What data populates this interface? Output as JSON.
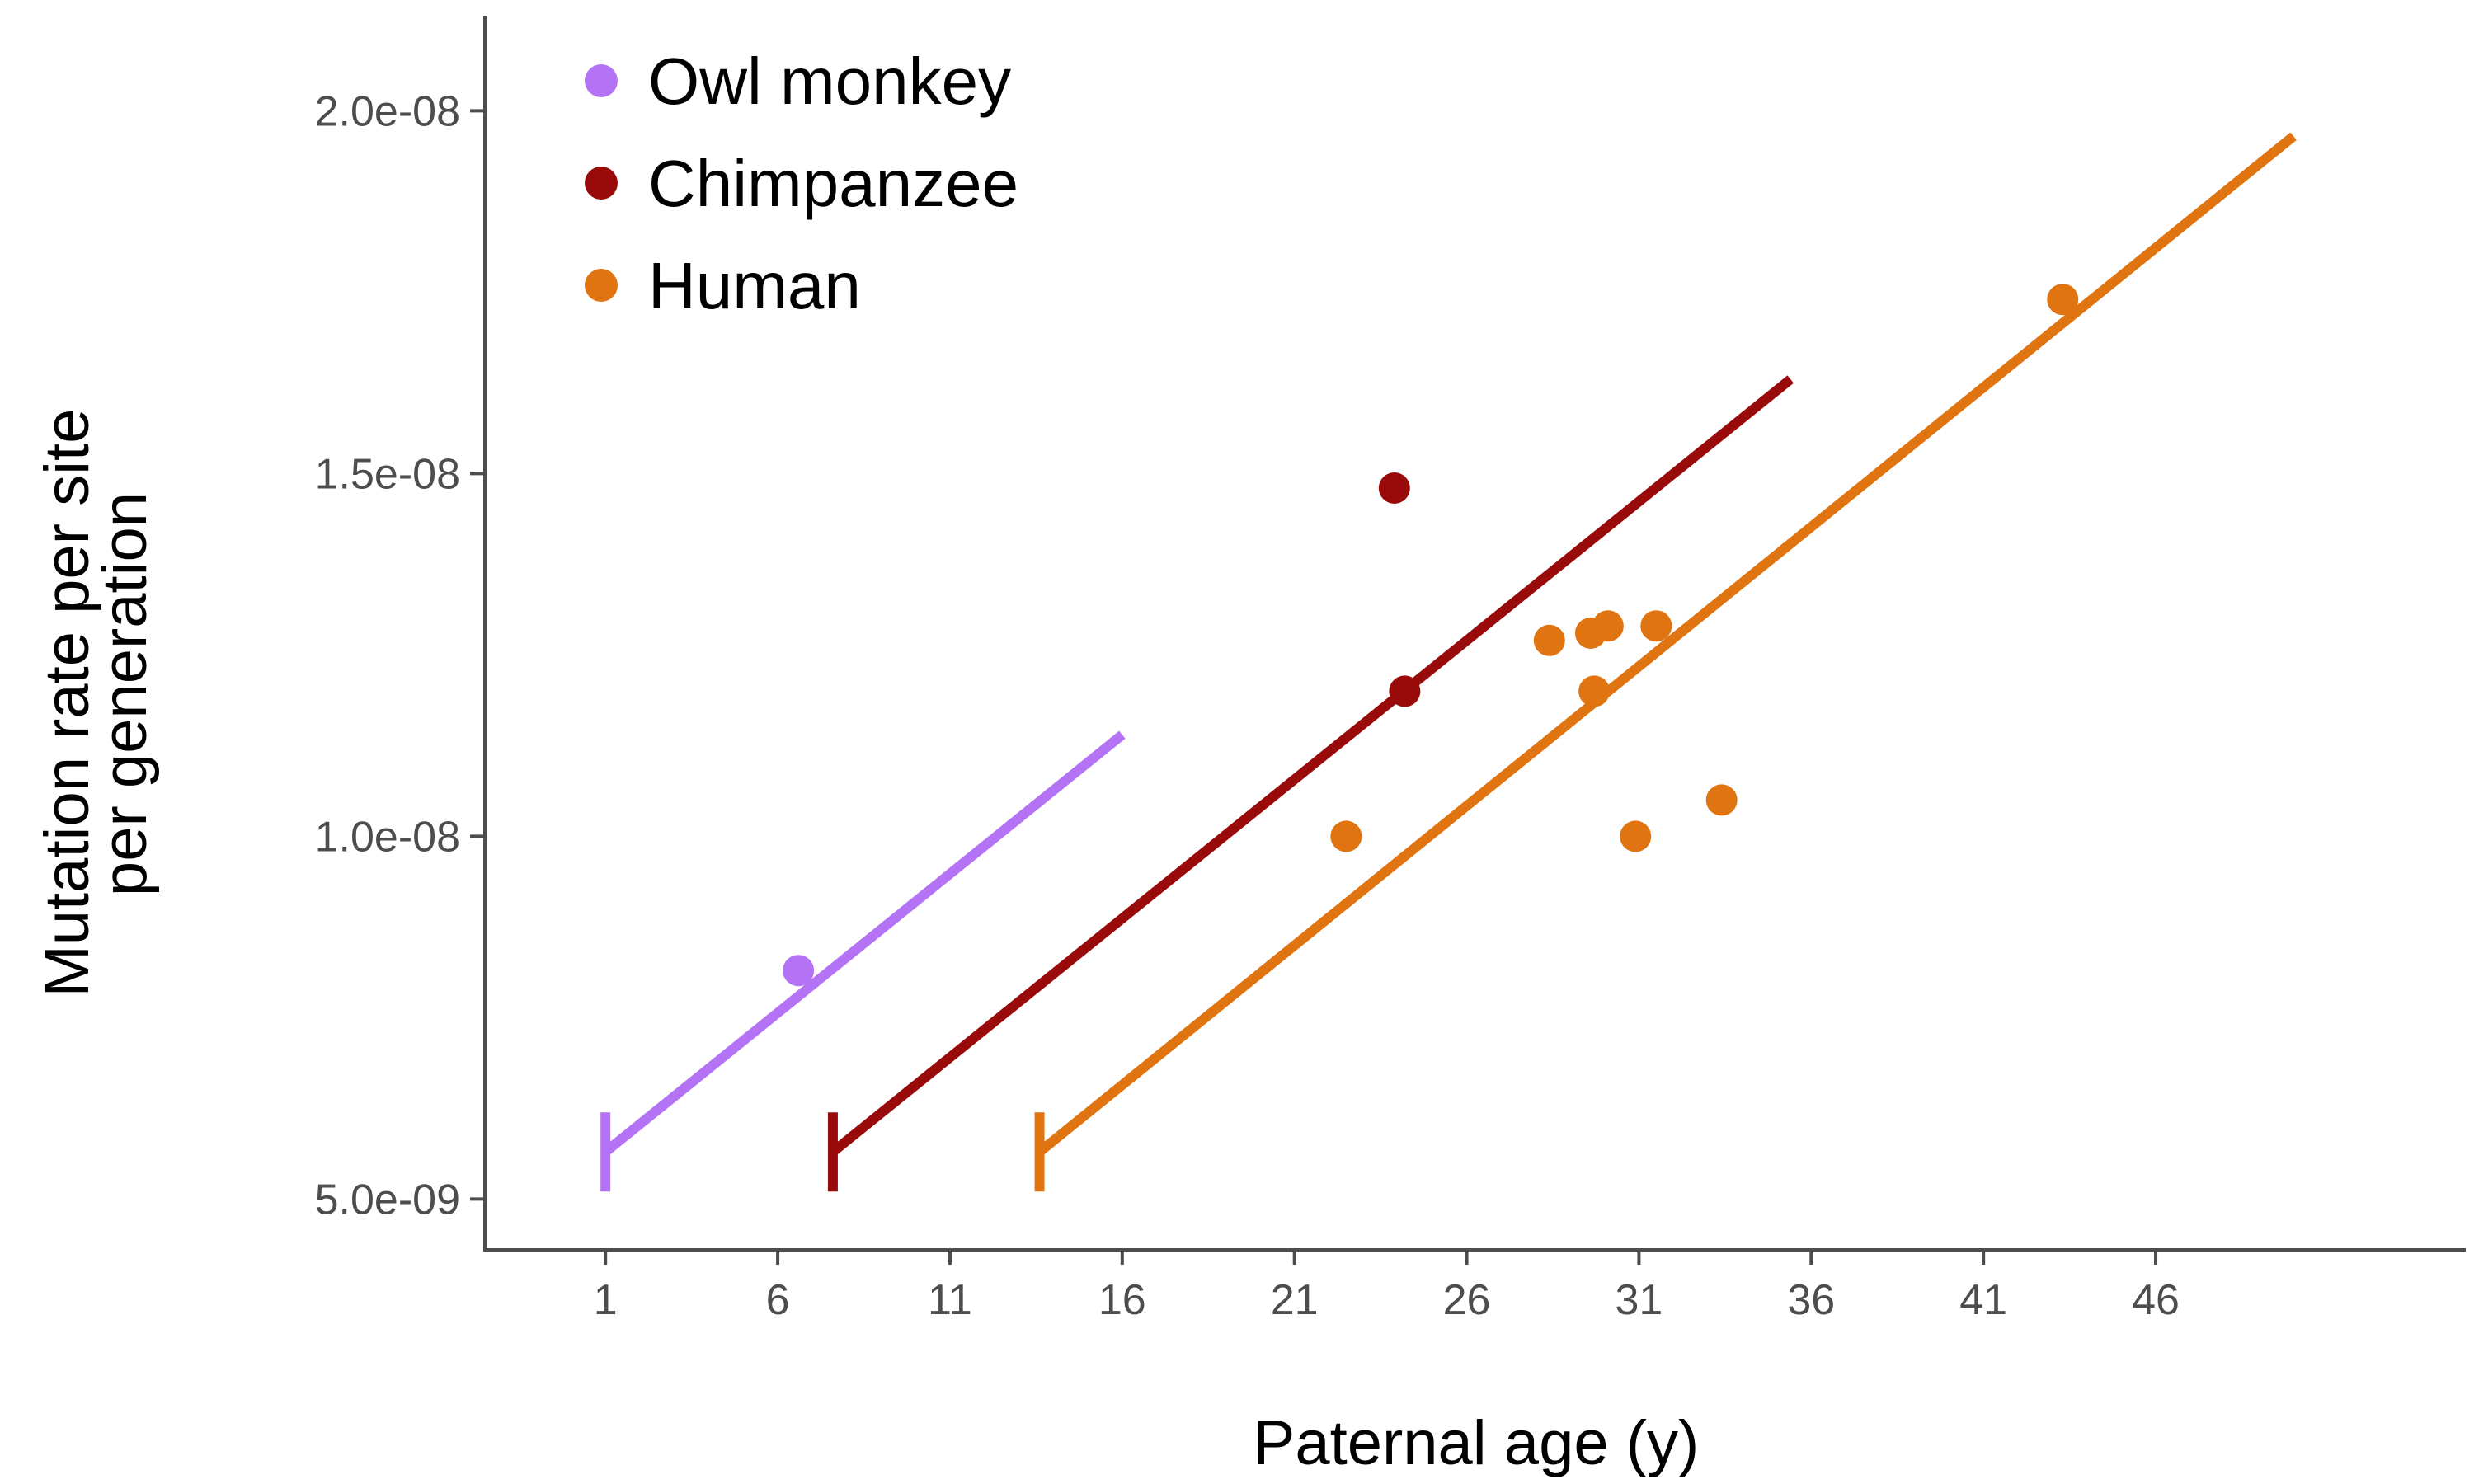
{
  "chart_data": {
    "type": "scatter",
    "title": "",
    "xlabel": "Paternal age (y)",
    "ylabel_lines": [
      "Mutation rate per site",
      "per generation"
    ],
    "xlim": [
      -2.5,
      55
    ],
    "ylim": [
      4.3e-09,
      2.13e-08
    ],
    "x_ticks": [
      1,
      6,
      11,
      16,
      21,
      26,
      31,
      36,
      41,
      46
    ],
    "x_tick_labels": [
      "1",
      "6",
      "11",
      "16",
      "21",
      "26",
      "31",
      "36",
      "41",
      "46"
    ],
    "y_ticks": [
      5e-09,
      1e-08,
      1.5e-08,
      2e-08
    ],
    "y_tick_labels": [
      "5.0e-09",
      "1.0e-08",
      "1.5e-08",
      "2.0e-08"
    ],
    "grid": false,
    "legend_position": "top-left",
    "series": [
      {
        "name": "Owl monkey",
        "color": "#b472f5",
        "points": [
          {
            "x": 6.6,
            "y": 8.15e-09
          }
        ],
        "fit_line": {
          "x": [
            1,
            16
          ],
          "y": [
            5.65e-09,
            1.14e-08
          ]
        },
        "onset_x": 1
      },
      {
        "name": "Chimpanzee",
        "color": "#990a0a",
        "points": [
          {
            "x": 23.9,
            "y": 1.48e-08
          },
          {
            "x": 24.2,
            "y": 1.2e-08
          }
        ],
        "fit_line": {
          "x": [
            7.6,
            35.4
          ],
          "y": [
            5.65e-09,
            1.63e-08
          ]
        },
        "onset_x": 7.6
      },
      {
        "name": "Human",
        "color": "#df7411",
        "points": [
          {
            "x": 22.5,
            "y": 1e-08
          },
          {
            "x": 28.4,
            "y": 1.27e-08
          },
          {
            "x": 29.6,
            "y": 1.28e-08
          },
          {
            "x": 30.1,
            "y": 1.29e-08
          },
          {
            "x": 29.7,
            "y": 1.2e-08
          },
          {
            "x": 31.5,
            "y": 1.29e-08
          },
          {
            "x": 30.9,
            "y": 1e-08
          },
          {
            "x": 33.4,
            "y": 1.05e-08
          },
          {
            "x": 43.3,
            "y": 1.74e-08
          }
        ],
        "fit_line": {
          "x": [
            13.6,
            50
          ],
          "y": [
            5.65e-09,
            1.965e-08
          ]
        },
        "onset_x": 13.6
      }
    ]
  }
}
